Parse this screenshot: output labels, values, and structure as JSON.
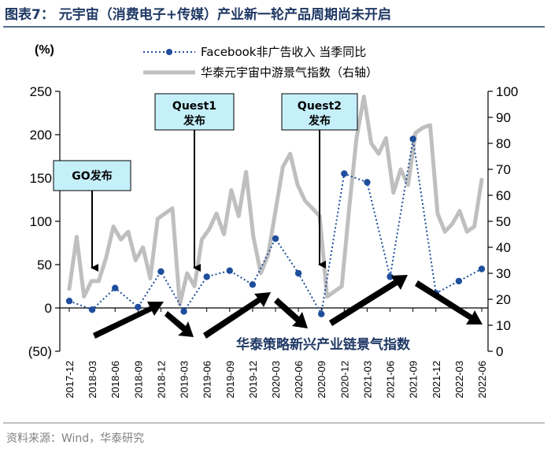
{
  "title": "图表7：  元宇宙（消费电子+传媒）产业新一轮产品周期尚未开启",
  "source": "资料来源：Wind，华泰研究",
  "colors": {
    "title": "#1f3864",
    "facebook": "#1f4e9c",
    "index": "#bfbfbf",
    "box_fill": "#c5f0fa",
    "arrow": "#000000"
  },
  "chart_data": {
    "type": "line",
    "y_left_unit": "(%)",
    "y_left_ticks": [
      "250",
      "200",
      "150",
      "100",
      "50",
      "0",
      "(50)"
    ],
    "y_right_ticks": [
      "100",
      "90",
      "80",
      "70",
      "60",
      "50",
      "40",
      "30",
      "20",
      "10",
      "0"
    ],
    "ylim_left": [
      -50,
      250
    ],
    "ylim_right": [
      0,
      100
    ],
    "x_tick_labels": [
      "2017-12",
      "2018-03",
      "2018-06",
      "2018-09",
      "2018-12",
      "2019-03",
      "2019-06",
      "2019-09",
      "2019-12",
      "2020-03",
      "2020-06",
      "2020-09",
      "2020-12",
      "2021-03",
      "2021-06",
      "2021-09",
      "2021-12",
      "2022-03",
      "2022-06"
    ],
    "series": [
      {
        "name": "Facebook非广告收入 当季同比",
        "axis": "left",
        "style": "dotted-markers",
        "x": [
          "2017-12",
          "2018-03",
          "2018-06",
          "2018-09",
          "2018-12",
          "2019-03",
          "2019-06",
          "2019-09",
          "2019-12",
          "2020-03",
          "2020-06",
          "2020-09",
          "2020-12",
          "2021-03",
          "2021-06",
          "2021-09",
          "2021-12",
          "2022-03",
          "2022-06"
        ],
        "values": [
          8,
          -2,
          23,
          1,
          42,
          -4,
          36,
          43,
          27,
          80,
          40,
          -7,
          155,
          145,
          36,
          195,
          17,
          31,
          45
        ]
      },
      {
        "name": "华泰元宇宙中游景气指数（右轴）",
        "axis": "right",
        "style": "thick-line",
        "values": [
          24,
          44,
          21,
          27,
          27,
          36,
          48,
          43,
          46,
          35,
          40,
          28,
          51,
          53,
          55,
          18,
          30,
          25,
          43,
          47,
          53,
          45,
          62,
          52,
          69,
          44,
          30,
          37,
          54,
          71,
          76,
          64,
          58,
          55,
          52,
          21,
          23,
          25,
          55,
          82,
          98,
          80,
          76,
          82,
          61,
          70,
          64,
          84,
          86,
          87,
          53,
          46,
          49,
          54,
          46,
          48,
          66
        ]
      }
    ],
    "annotations": {
      "go": {
        "line1": "GO发布",
        "at": "2018-03"
      },
      "quest1": {
        "line1": "Quest1",
        "line2": "发布",
        "at": "2019-03"
      },
      "quest2": {
        "line1": "Quest2",
        "line2": "发布",
        "at": "2020-09"
      }
    },
    "index_label": "华泰策略新兴产业链景气指数",
    "legend_position": "top"
  }
}
